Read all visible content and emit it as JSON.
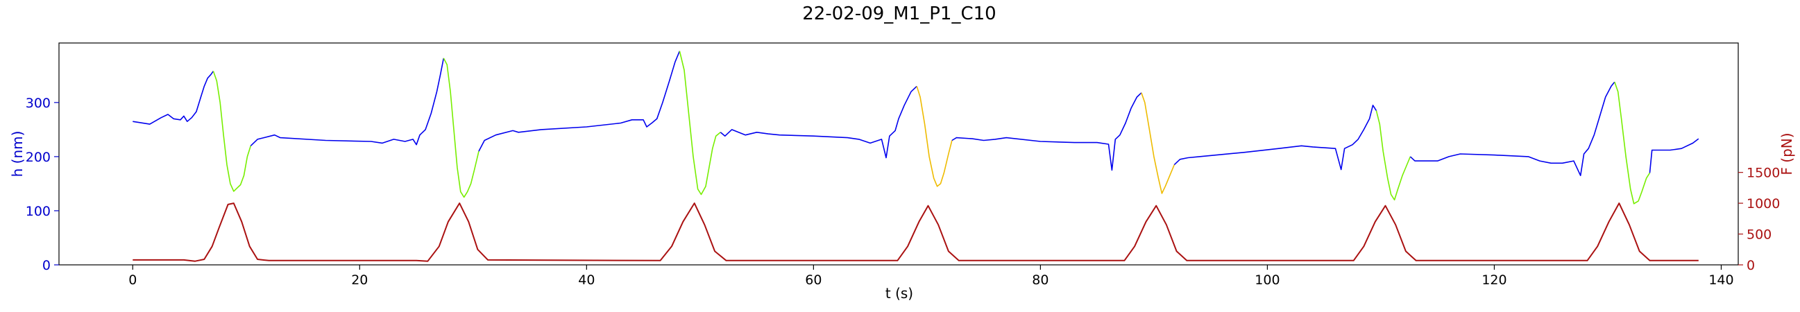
{
  "chart_data": {
    "type": "line",
    "title": "22-02-09_M1_P1_C10",
    "xlabel": "t (s)",
    "ylabel_left": "h (nm)",
    "ylabel_right": "F (pN)",
    "xlim": [
      -6.5,
      141.5
    ],
    "ylim_left": [
      0,
      410
    ],
    "ylim_right": [
      0,
      3600
    ],
    "xticks": [
      0,
      20,
      40,
      60,
      80,
      100,
      120,
      140
    ],
    "yticks_left": [
      0,
      100,
      200,
      300
    ],
    "yticks_right": [
      0,
      500,
      1000,
      1500
    ],
    "colors": {
      "height_base": "#0000ee",
      "height_compress": "#77ee00",
      "height_compress_alt": "#eebb00",
      "force": "#aa1111",
      "left_axis": "#0000cc",
      "right_axis": "#aa1111"
    },
    "height_series": [
      {
        "color": "height_base",
        "points": [
          [
            0,
            265
          ],
          [
            1.5,
            260
          ],
          [
            2.5,
            272
          ],
          [
            3.1,
            278
          ],
          [
            3.6,
            270
          ],
          [
            4.2,
            268
          ],
          [
            4.5,
            275
          ],
          [
            4.8,
            265
          ],
          [
            5.2,
            272
          ],
          [
            5.6,
            283
          ],
          [
            6,
            310
          ],
          [
            6.3,
            330
          ],
          [
            6.6,
            345
          ],
          [
            6.9,
            352
          ],
          [
            7.1,
            358
          ]
        ]
      },
      {
        "color": "height_compress",
        "points": [
          [
            7.1,
            358
          ],
          [
            7.4,
            340
          ],
          [
            7.7,
            300
          ],
          [
            8,
            240
          ],
          [
            8.3,
            185
          ],
          [
            8.6,
            150
          ],
          [
            8.9,
            136
          ],
          [
            9.2,
            142
          ],
          [
            9.5,
            148
          ],
          [
            9.8,
            165
          ],
          [
            10.1,
            200
          ],
          [
            10.4,
            220
          ]
        ]
      },
      {
        "color": "height_base",
        "points": [
          [
            10.4,
            220
          ],
          [
            11,
            232
          ],
          [
            12.5,
            240
          ],
          [
            13,
            235
          ],
          [
            17,
            230
          ],
          [
            21,
            228
          ],
          [
            22,
            225
          ],
          [
            23,
            232
          ],
          [
            24,
            228
          ],
          [
            24.7,
            232
          ],
          [
            25,
            222
          ],
          [
            25.3,
            240
          ],
          [
            25.8,
            250
          ],
          [
            26.3,
            280
          ],
          [
            26.8,
            320
          ],
          [
            27.1,
            350
          ],
          [
            27.4,
            382
          ]
        ]
      },
      {
        "color": "height_compress",
        "points": [
          [
            27.4,
            382
          ],
          [
            27.7,
            370
          ],
          [
            28,
            320
          ],
          [
            28.3,
            250
          ],
          [
            28.6,
            180
          ],
          [
            28.9,
            135
          ],
          [
            29.2,
            125
          ],
          [
            29.5,
            135
          ],
          [
            29.8,
            150
          ],
          [
            30.1,
            175
          ],
          [
            30.5,
            210
          ]
        ]
      },
      {
        "color": "height_base",
        "points": [
          [
            30.5,
            210
          ],
          [
            31,
            230
          ],
          [
            32,
            240
          ],
          [
            33.5,
            248
          ],
          [
            34,
            245
          ],
          [
            36,
            250
          ],
          [
            40,
            255
          ],
          [
            43,
            262
          ],
          [
            44,
            268
          ],
          [
            45,
            268
          ],
          [
            45.3,
            255
          ],
          [
            45.8,
            263
          ],
          [
            46.2,
            270
          ],
          [
            46.7,
            300
          ],
          [
            47.3,
            340
          ],
          [
            47.8,
            375
          ],
          [
            48.2,
            395
          ]
        ]
      },
      {
        "color": "height_compress",
        "points": [
          [
            48.2,
            395
          ],
          [
            48.6,
            360
          ],
          [
            49,
            280
          ],
          [
            49.4,
            200
          ],
          [
            49.8,
            140
          ],
          [
            50.1,
            130
          ],
          [
            50.5,
            145
          ],
          [
            50.8,
            180
          ],
          [
            51.1,
            215
          ],
          [
            51.4,
            238
          ],
          [
            51.8,
            245
          ]
        ]
      },
      {
        "color": "height_base",
        "points": [
          [
            51.8,
            245
          ],
          [
            52.2,
            238
          ],
          [
            52.8,
            250
          ],
          [
            54,
            240
          ],
          [
            55,
            245
          ],
          [
            56,
            242
          ],
          [
            57,
            240
          ],
          [
            60,
            238
          ],
          [
            63,
            235
          ],
          [
            64,
            232
          ],
          [
            65,
            225
          ],
          [
            66,
            232
          ],
          [
            66.4,
            198
          ],
          [
            66.7,
            238
          ],
          [
            67.2,
            248
          ],
          [
            67.5,
            270
          ],
          [
            68,
            295
          ],
          [
            68.6,
            320
          ],
          [
            69.1,
            330
          ]
        ]
      },
      {
        "color": "height_compress_alt",
        "points": [
          [
            69.1,
            330
          ],
          [
            69.4,
            310
          ],
          [
            69.8,
            260
          ],
          [
            70.2,
            200
          ],
          [
            70.6,
            160
          ],
          [
            70.9,
            145
          ],
          [
            71.2,
            150
          ],
          [
            71.5,
            170
          ],
          [
            71.9,
            205
          ],
          [
            72.2,
            230
          ]
        ]
      },
      {
        "color": "height_base",
        "points": [
          [
            72.2,
            230
          ],
          [
            72.6,
            235
          ],
          [
            74,
            233
          ],
          [
            75,
            230
          ],
          [
            76,
            232
          ],
          [
            77,
            235
          ],
          [
            80,
            228
          ],
          [
            83,
            226
          ],
          [
            85,
            226
          ],
          [
            86,
            223
          ],
          [
            86.3,
            175
          ],
          [
            86.6,
            232
          ],
          [
            87,
            240
          ],
          [
            87.5,
            262
          ],
          [
            88,
            290
          ],
          [
            88.5,
            310
          ],
          [
            88.9,
            318
          ]
        ]
      },
      {
        "color": "height_compress_alt",
        "points": [
          [
            88.9,
            318
          ],
          [
            89.2,
            300
          ],
          [
            89.6,
            250
          ],
          [
            90,
            200
          ],
          [
            90.4,
            160
          ],
          [
            90.7,
            132
          ],
          [
            91,
            145
          ],
          [
            91.4,
            165
          ],
          [
            91.8,
            185
          ]
        ]
      },
      {
        "color": "height_base",
        "points": [
          [
            91.8,
            185
          ],
          [
            92.3,
            195
          ],
          [
            93,
            198
          ],
          [
            94,
            200
          ],
          [
            98,
            208
          ],
          [
            101,
            215
          ],
          [
            103,
            220
          ],
          [
            104,
            218
          ],
          [
            106,
            215
          ],
          [
            106.5,
            176
          ],
          [
            106.8,
            215
          ],
          [
            107.5,
            222
          ],
          [
            108,
            232
          ],
          [
            108.5,
            250
          ],
          [
            109,
            270
          ],
          [
            109.3,
            295
          ],
          [
            109.6,
            285
          ]
        ]
      },
      {
        "color": "height_compress",
        "points": [
          [
            109.6,
            285
          ],
          [
            109.9,
            260
          ],
          [
            110.2,
            210
          ],
          [
            110.6,
            160
          ],
          [
            110.9,
            130
          ],
          [
            111.2,
            120
          ],
          [
            111.5,
            140
          ],
          [
            111.9,
            165
          ],
          [
            112.2,
            180
          ],
          [
            112.6,
            200
          ]
        ]
      },
      {
        "color": "height_base",
        "points": [
          [
            112.6,
            200
          ],
          [
            113,
            192
          ],
          [
            115,
            192
          ],
          [
            116,
            200
          ],
          [
            117,
            205
          ],
          [
            120,
            203
          ],
          [
            123,
            200
          ],
          [
            124,
            192
          ],
          [
            125,
            188
          ],
          [
            126,
            188
          ],
          [
            127,
            192
          ],
          [
            127.6,
            165
          ],
          [
            127.9,
            205
          ],
          [
            128.3,
            215
          ],
          [
            128.8,
            240
          ],
          [
            129.3,
            275
          ],
          [
            129.8,
            310
          ],
          [
            130.3,
            330
          ],
          [
            130.6,
            338
          ]
        ]
      },
      {
        "color": "height_compress",
        "points": [
          [
            130.6,
            338
          ],
          [
            130.9,
            320
          ],
          [
            131.2,
            270
          ],
          [
            131.6,
            200
          ],
          [
            132,
            140
          ],
          [
            132.3,
            113
          ],
          [
            132.7,
            118
          ],
          [
            133,
            135
          ],
          [
            133.4,
            160
          ],
          [
            133.7,
            170
          ]
        ]
      },
      {
        "color": "height_base",
        "points": [
          [
            133.7,
            170
          ],
          [
            133.9,
            212
          ],
          [
            134.2,
            212
          ],
          [
            135.5,
            212
          ],
          [
            136.5,
            215
          ],
          [
            137.5,
            225
          ],
          [
            138,
            233
          ]
        ]
      }
    ],
    "force_series": {
      "color": "force",
      "points": [
        [
          0,
          80
        ],
        [
          4.5,
          80
        ],
        [
          5.5,
          60
        ],
        [
          6.3,
          90
        ],
        [
          7,
          300
        ],
        [
          7.6,
          600
        ],
        [
          8.4,
          980
        ],
        [
          8.9,
          1000
        ],
        [
          9.6,
          700
        ],
        [
          10.3,
          300
        ],
        [
          11,
          90
        ],
        [
          12,
          70
        ],
        [
          25,
          70
        ],
        [
          26,
          60
        ],
        [
          27,
          300
        ],
        [
          27.8,
          700
        ],
        [
          28.8,
          1000
        ],
        [
          29.6,
          700
        ],
        [
          30.4,
          250
        ],
        [
          31.3,
          80
        ],
        [
          46.5,
          70
        ],
        [
          47.5,
          300
        ],
        [
          48.5,
          700
        ],
        [
          49.5,
          1000
        ],
        [
          50.4,
          650
        ],
        [
          51.3,
          220
        ],
        [
          52.3,
          70
        ],
        [
          67.4,
          70
        ],
        [
          68.3,
          300
        ],
        [
          69.3,
          700
        ],
        [
          70.1,
          960
        ],
        [
          71,
          650
        ],
        [
          71.9,
          220
        ],
        [
          72.8,
          70
        ],
        [
          87.4,
          70
        ],
        [
          88.3,
          300
        ],
        [
          89.3,
          700
        ],
        [
          90.2,
          960
        ],
        [
          91.1,
          650
        ],
        [
          92,
          220
        ],
        [
          92.9,
          70
        ],
        [
          107.6,
          70
        ],
        [
          108.5,
          300
        ],
        [
          109.5,
          700
        ],
        [
          110.4,
          960
        ],
        [
          111.3,
          650
        ],
        [
          112.2,
          220
        ],
        [
          113.1,
          70
        ],
        [
          128.2,
          70
        ],
        [
          129.1,
          300
        ],
        [
          130.1,
          700
        ],
        [
          131,
          1000
        ],
        [
          131.9,
          650
        ],
        [
          132.8,
          220
        ],
        [
          133.7,
          70
        ],
        [
          138,
          70
        ]
      ]
    }
  }
}
